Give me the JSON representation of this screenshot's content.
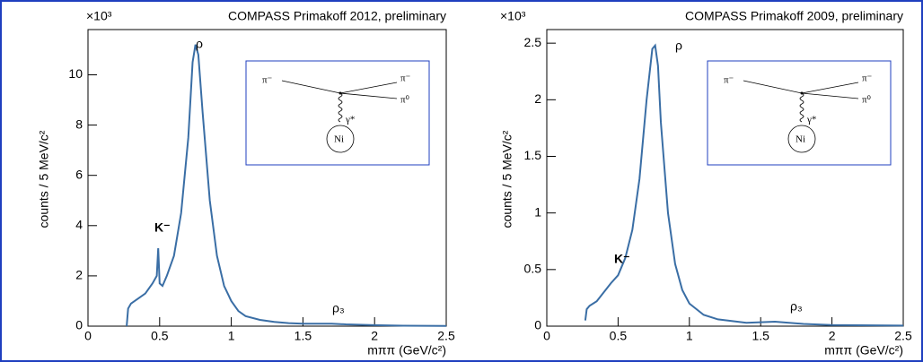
{
  "chart_data": [
    {
      "type": "line",
      "title": "COMPASS Primakoff 2012, preliminary",
      "multiplier": "×10³",
      "x_label": "mππ (GeV/c²)",
      "y_label": "counts / 5 MeV/c²",
      "annotations": [
        "ρ",
        "K⁻",
        "ρ₃"
      ],
      "diagram_labels": [
        "π⁻",
        "π⁻",
        "π⁰",
        "γ*",
        "Ni"
      ],
      "xlim": [
        0,
        2.5
      ],
      "ylim": [
        0,
        11.8
      ],
      "xticks": [
        0,
        0.5,
        1,
        1.5,
        2,
        2.5
      ],
      "yticks": [
        0,
        2,
        4,
        6,
        8,
        10
      ],
      "series": [
        {
          "color": "#3a6ea5",
          "x": [
            0.27,
            0.28,
            0.3,
            0.35,
            0.4,
            0.45,
            0.48,
            0.49,
            0.5,
            0.52,
            0.55,
            0.6,
            0.65,
            0.7,
            0.73,
            0.75,
            0.77,
            0.8,
            0.85,
            0.9,
            0.95,
            1.0,
            1.05,
            1.1,
            1.2,
            1.3,
            1.4,
            1.5,
            1.6,
            1.7,
            1.8,
            2.0,
            2.2,
            2.5
          ],
          "values": [
            0,
            0.7,
            0.9,
            1.1,
            1.3,
            1.7,
            2.0,
            3.1,
            1.7,
            1.6,
            2.0,
            2.8,
            4.5,
            7.5,
            10.5,
            11.2,
            10.8,
            8.5,
            5.0,
            2.8,
            1.6,
            1.0,
            0.6,
            0.4,
            0.25,
            0.17,
            0.12,
            0.1,
            0.1,
            0.1,
            0.07,
            0.04,
            0.02,
            0.01
          ]
        }
      ]
    },
    {
      "type": "line",
      "title": "COMPASS Primakoff 2009, preliminary",
      "multiplier": "×10³",
      "x_label": "mππ (GeV/c²)",
      "y_label": "counts / 5 MeV/c²",
      "annotations": [
        "ρ",
        "K⁻",
        "ρ₃"
      ],
      "diagram_labels": [
        "π⁻",
        "π⁻",
        "π⁰",
        "γ*",
        "Ni"
      ],
      "xlim": [
        0,
        2.5
      ],
      "ylim": [
        0,
        2.62
      ],
      "xticks": [
        0,
        0.5,
        1,
        1.5,
        2,
        2.5
      ],
      "yticks": [
        0,
        0.5,
        1,
        1.5,
        2,
        2.5
      ],
      "series": [
        {
          "color": "#3a6ea5",
          "x": [
            0.27,
            0.28,
            0.3,
            0.35,
            0.4,
            0.45,
            0.5,
            0.55,
            0.6,
            0.65,
            0.7,
            0.74,
            0.76,
            0.78,
            0.8,
            0.85,
            0.9,
            0.95,
            1.0,
            1.1,
            1.2,
            1.4,
            1.6,
            1.8,
            2.0,
            2.5
          ],
          "values": [
            0.05,
            0.15,
            0.18,
            0.22,
            0.3,
            0.38,
            0.45,
            0.6,
            0.85,
            1.3,
            2.0,
            2.45,
            2.48,
            2.3,
            1.8,
            1.0,
            0.55,
            0.32,
            0.2,
            0.1,
            0.06,
            0.03,
            0.04,
            0.02,
            0.01,
            0.005
          ]
        }
      ]
    }
  ]
}
